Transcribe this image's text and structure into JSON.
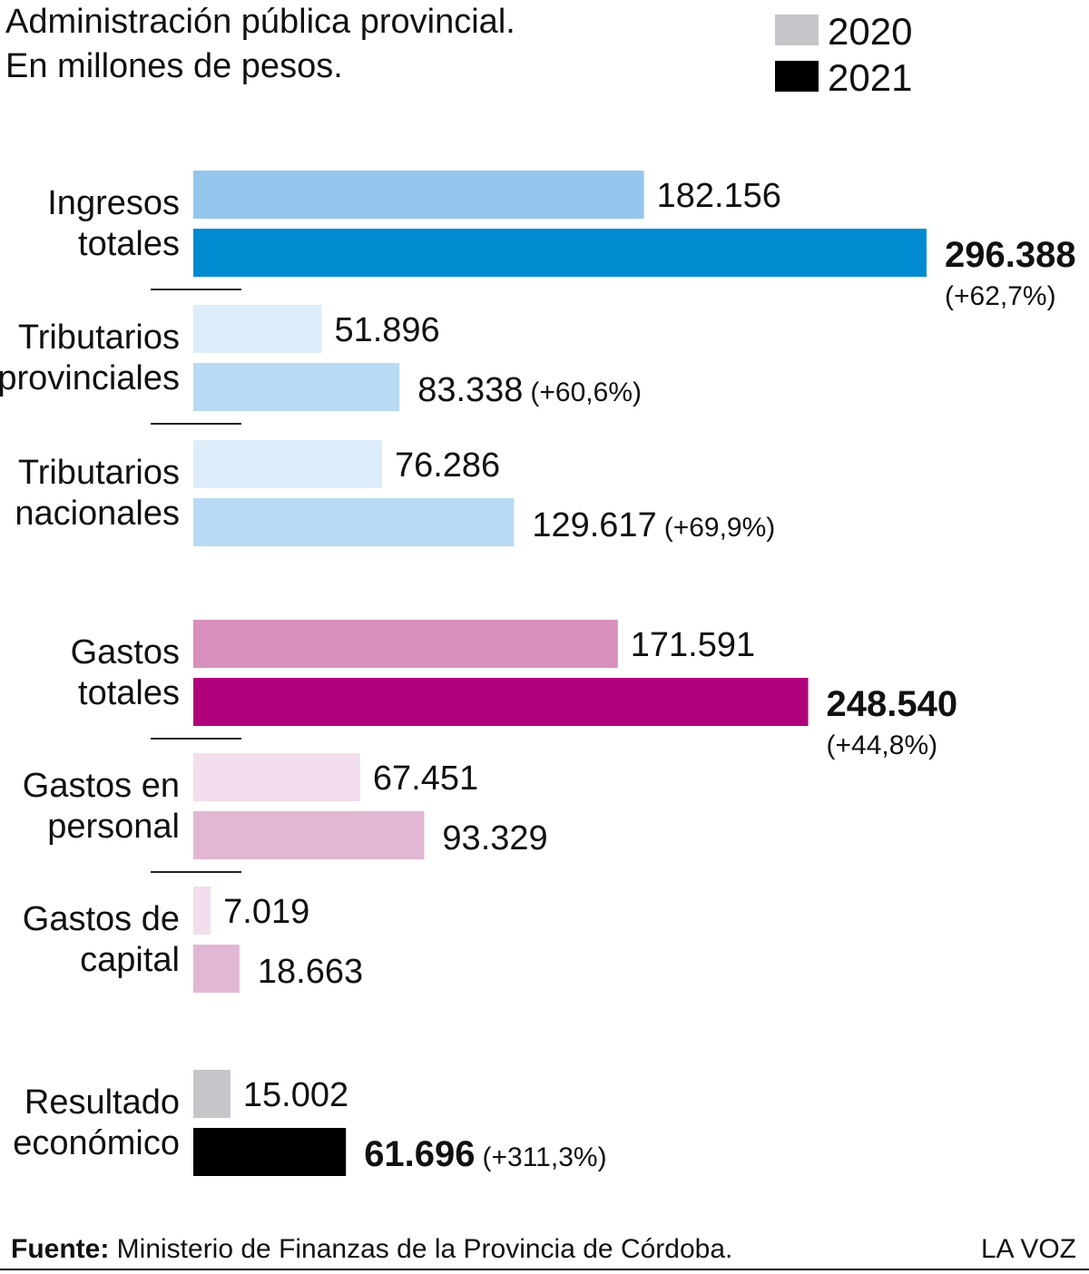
{
  "title_line1": "Administración pública provincial.",
  "title_line2": "En millones de pesos.",
  "legend": [
    {
      "label": "2020",
      "color": "#c5c6ca"
    },
    {
      "label": "2021",
      "color": "#000000"
    }
  ],
  "footer": {
    "source_label": "Fuente:",
    "source_text": " Ministerio de Finanzas de la Provincia de Córdoba.",
    "brand": "LA VOZ"
  },
  "chart_data": {
    "type": "bar",
    "orientation": "horizontal",
    "unit": "millones de pesos",
    "categories": [
      {
        "label_lines": [
          "Ingresos",
          "totales"
        ],
        "v2020": 182156,
        "v2021": 296388,
        "label2020": "182.156",
        "label2021": "296.388",
        "change": "(+62,7%)",
        "bold2021": true,
        "change_below": true,
        "color2020": "#93c6ec",
        "color2021": "#008ad0"
      },
      {
        "label_lines": [
          "Tributarios",
          "provinciales"
        ],
        "v2020": 51896,
        "v2021": 83338,
        "label2020": "51.896",
        "label2021": "83.338",
        "change": "(+60,6%)",
        "bold2021": false,
        "change_below": false,
        "color2020": "#ddedf9",
        "color2021": "#b8daf4"
      },
      {
        "label_lines": [
          "Tributarios",
          "nacionales"
        ],
        "v2020": 76286,
        "v2021": 129617,
        "label2020": "76.286",
        "label2021": "129.617",
        "change": "(+69,9%)",
        "bold2021": false,
        "change_below": false,
        "color2020": "#ddedf9",
        "color2021": "#b8daf4"
      },
      {
        "label_lines": [
          "Gastos",
          "totales"
        ],
        "v2020": 171591,
        "v2021": 248540,
        "label2020": "171.591",
        "label2021": "248.540",
        "change": "(+44,8%)",
        "bold2021": true,
        "change_below": true,
        "color2020": "#d78fbb",
        "color2021": "#b1007c"
      },
      {
        "label_lines": [
          "Gastos en",
          "personal"
        ],
        "v2020": 67451,
        "v2021": 93329,
        "label2020": "67.451",
        "label2021": "93.329",
        "change": "",
        "bold2021": false,
        "change_below": false,
        "color2020": "#f2deec",
        "color2021": "#e1b7d4"
      },
      {
        "label_lines": [
          "Gastos de",
          "capital"
        ],
        "v2020": 7019,
        "v2021": 18663,
        "label2020": "7.019",
        "label2021": "18.663",
        "change": "",
        "bold2021": false,
        "change_below": false,
        "color2020": "#f2deec",
        "color2021": "#e1b7d4"
      },
      {
        "label_lines": [
          "Resultado",
          "económico"
        ],
        "v2020": 15002,
        "v2021": 61696,
        "label2020": "15.002",
        "label2021": "61.696",
        "change": "(+311,3%)",
        "bold2021": true,
        "change_below": false,
        "color2020": "#c5c6ca",
        "color2021": "#000000"
      }
    ],
    "series": [
      {
        "name": "2020"
      },
      {
        "name": "2021"
      }
    ],
    "grid": false,
    "legend_position": "top-right"
  }
}
